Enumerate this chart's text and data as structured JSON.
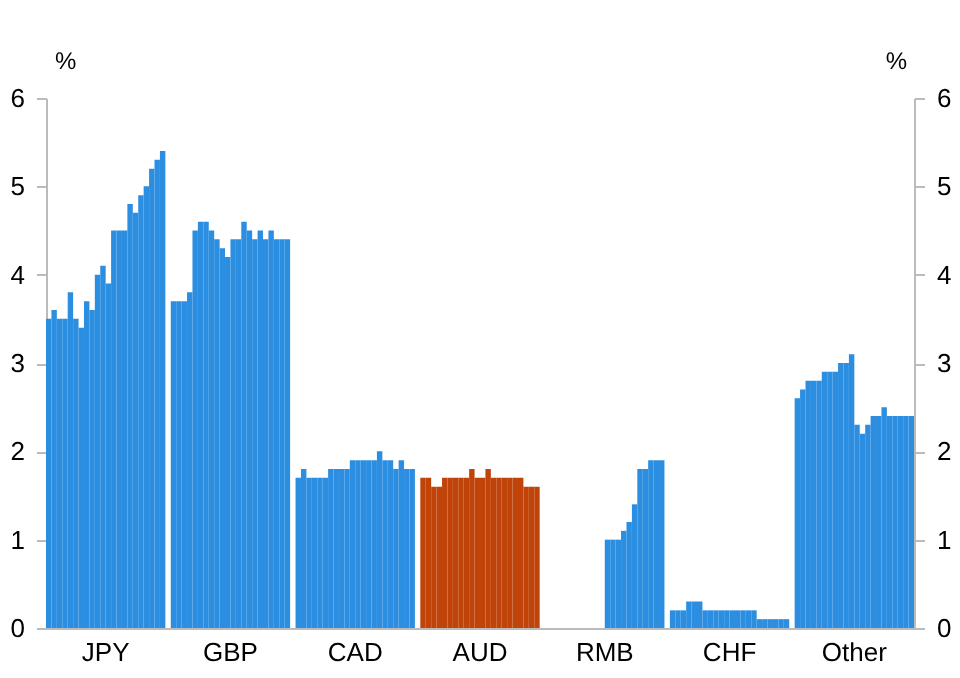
{
  "chart_data": {
    "type": "bar",
    "ylabel": "%",
    "y2label": "%",
    "ylim": [
      0,
      6
    ],
    "yticks": [
      0,
      1,
      2,
      3,
      4,
      5,
      6
    ],
    "y2lim": [
      0,
      6
    ],
    "y2ticks": [
      0,
      1,
      2,
      3,
      4,
      5,
      6
    ],
    "categories": [
      null,
      null,
      null,
      null,
      null,
      null,
      null,
      null,
      null,
      null,
      null,
      "JPY",
      null,
      null,
      null,
      null,
      null,
      null,
      null,
      null,
      null,
      null,
      null,
      null,
      null,
      null,
      null,
      null,
      null,
      null,
      null,
      null,
      null,
      null,
      "GBP",
      null,
      null,
      null,
      null,
      null,
      null,
      null,
      null,
      null,
      null,
      null,
      null,
      null,
      null,
      null,
      null,
      null,
      null,
      null,
      null,
      null,
      null,
      "CAD",
      null,
      null,
      null,
      null,
      null,
      null,
      null,
      null,
      null,
      null,
      null,
      null,
      null,
      null,
      null,
      null,
      null,
      null,
      null,
      null,
      null,
      null,
      "AUD",
      null,
      null,
      null,
      null,
      null,
      null,
      null,
      null,
      null,
      null,
      null,
      null,
      null,
      null,
      null,
      null,
      null,
      null,
      null,
      null,
      null,
      null,
      "RMB",
      null,
      null,
      null,
      null,
      null,
      null,
      null,
      null,
      null,
      null,
      null,
      null,
      null,
      null,
      null,
      null,
      null,
      null,
      null,
      null,
      null,
      null,
      "CHF",
      null,
      null,
      null,
      null,
      null,
      null,
      null,
      null,
      null,
      null,
      null,
      null,
      null,
      null,
      null,
      null,
      null,
      null,
      null,
      null,
      null,
      null,
      "Other",
      null,
      null,
      null,
      null,
      null,
      null,
      null,
      null,
      null,
      null
    ],
    "values": [
      3.5,
      3.6,
      3.5,
      3.5,
      3.8,
      3.5,
      3.4,
      3.7,
      3.6,
      4.0,
      4.1,
      3.9,
      4.5,
      4.5,
      4.5,
      4.8,
      4.7,
      4.9,
      5.0,
      5.2,
      5.3,
      5.4,
      null,
      3.7,
      3.7,
      3.7,
      3.8,
      4.5,
      4.6,
      4.6,
      4.5,
      4.4,
      4.3,
      4.2,
      4.4,
      4.4,
      4.6,
      4.5,
      4.4,
      4.5,
      4.4,
      4.5,
      4.4,
      4.4,
      4.4,
      null,
      1.7,
      1.8,
      1.7,
      1.7,
      1.7,
      1.7,
      1.8,
      1.8,
      1.8,
      1.8,
      1.9,
      1.9,
      1.9,
      1.9,
      1.9,
      2.0,
      1.9,
      1.9,
      1.8,
      1.9,
      1.8,
      1.8,
      null,
      1.7,
      1.7,
      1.6,
      1.6,
      1.7,
      1.7,
      1.7,
      1.7,
      1.7,
      1.8,
      1.7,
      1.7,
      1.8,
      1.7,
      1.7,
      1.7,
      1.7,
      1.7,
      1.7,
      1.6,
      1.6,
      1.6,
      null,
      null,
      null,
      null,
      null,
      null,
      null,
      null,
      null,
      null,
      null,
      null,
      1.0,
      1.0,
      1.0,
      1.1,
      1.2,
      1.4,
      1.8,
      1.8,
      1.9,
      1.9,
      1.9,
      null,
      0.2,
      0.2,
      0.2,
      0.3,
      0.3,
      0.3,
      0.2,
      0.2,
      0.2,
      0.2,
      0.2,
      0.2,
      0.2,
      0.2,
      0.2,
      0.2,
      0.1,
      0.1,
      0.1,
      0.1,
      0.1,
      0.1,
      null,
      2.6,
      2.7,
      2.8,
      2.8,
      2.8,
      2.9,
      2.9,
      2.9,
      3.0,
      3.0,
      3.1,
      2.3,
      2.2,
      2.3,
      2.4,
      2.4,
      2.5,
      2.4,
      2.4,
      2.4,
      2.4,
      2.4
    ],
    "colors": [
      "#2b8ee0",
      "#2b8ee0",
      "#2b8ee0",
      "#2b8ee0",
      "#2b8ee0",
      "#2b8ee0",
      "#2b8ee0",
      "#2b8ee0",
      "#2b8ee0",
      "#2b8ee0",
      "#2b8ee0",
      "#2b8ee0",
      "#2b8ee0",
      "#2b8ee0",
      "#2b8ee0",
      "#2b8ee0",
      "#2b8ee0",
      "#2b8ee0",
      "#2b8ee0",
      "#2b8ee0",
      "#2b8ee0",
      "#2b8ee0",
      null,
      "#2b8ee0",
      "#2b8ee0",
      "#2b8ee0",
      "#2b8ee0",
      "#2b8ee0",
      "#2b8ee0",
      "#2b8ee0",
      "#2b8ee0",
      "#2b8ee0",
      "#2b8ee0",
      "#2b8ee0",
      "#2b8ee0",
      "#2b8ee0",
      "#2b8ee0",
      "#2b8ee0",
      "#2b8ee0",
      "#2b8ee0",
      "#2b8ee0",
      "#2b8ee0",
      "#2b8ee0",
      "#2b8ee0",
      "#2b8ee0",
      null,
      "#2b8ee0",
      "#2b8ee0",
      "#2b8ee0",
      "#2b8ee0",
      "#2b8ee0",
      "#2b8ee0",
      "#2b8ee0",
      "#2b8ee0",
      "#2b8ee0",
      "#2b8ee0",
      "#2b8ee0",
      "#2b8ee0",
      "#2b8ee0",
      "#2b8ee0",
      "#2b8ee0",
      "#2b8ee0",
      "#2b8ee0",
      "#2b8ee0",
      "#2b8ee0",
      "#2b8ee0",
      "#2b8ee0",
      "#2b8ee0",
      null,
      "#c0440a",
      "#c0440a",
      "#c0440a",
      "#c0440a",
      "#c0440a",
      "#c0440a",
      "#c0440a",
      "#c0440a",
      "#c0440a",
      "#c0440a",
      "#c0440a",
      "#c0440a",
      "#c0440a",
      "#c0440a",
      "#c0440a",
      "#c0440a",
      "#c0440a",
      "#c0440a",
      "#c0440a",
      "#c0440a",
      "#c0440a",
      "#c0440a",
      null,
      null,
      null,
      null,
      null,
      null,
      null,
      null,
      null,
      null,
      null,
      null,
      "#2b8ee0",
      "#2b8ee0",
      "#2b8ee0",
      "#2b8ee0",
      "#2b8ee0",
      "#2b8ee0",
      "#2b8ee0",
      "#2b8ee0",
      "#2b8ee0",
      "#2b8ee0",
      "#2b8ee0",
      null,
      "#2b8ee0",
      "#2b8ee0",
      "#2b8ee0",
      "#2b8ee0",
      "#2b8ee0",
      "#2b8ee0",
      "#2b8ee0",
      "#2b8ee0",
      "#2b8ee0",
      "#2b8ee0",
      "#2b8ee0",
      "#2b8ee0",
      "#2b8ee0",
      "#2b8ee0",
      "#2b8ee0",
      "#2b8ee0",
      "#2b8ee0",
      "#2b8ee0",
      "#2b8ee0",
      "#2b8ee0",
      "#2b8ee0",
      "#2b8ee0",
      null,
      "#2b8ee0",
      "#2b8ee0",
      "#2b8ee0",
      "#2b8ee0",
      "#2b8ee0",
      "#2b8ee0",
      "#2b8ee0",
      "#2b8ee0",
      "#2b8ee0",
      "#2b8ee0",
      "#2b8ee0",
      "#2b8ee0",
      "#2b8ee0",
      "#2b8ee0",
      "#2b8ee0",
      "#2b8ee0",
      "#2b8ee0",
      "#2b8ee0",
      "#2b8ee0",
      "#2b8ee0",
      "#2b8ee0",
      "#2b8ee0"
    ]
  }
}
